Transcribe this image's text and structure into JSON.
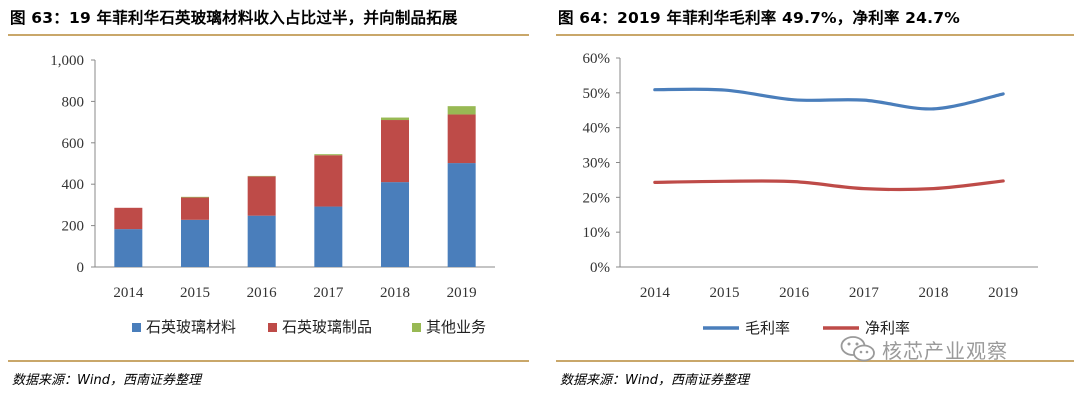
{
  "charts": [
    {
      "title": "图 63：19 年菲利华石英玻璃材料收入占比过半，并向制品拓展",
      "source": "数据来源：Wind，西南证券整理"
    },
    {
      "title": "图 64：2019 年菲利华毛利率 49.7%，净利率 24.7%",
      "source": "数据来源：Wind，西南证券整理"
    }
  ],
  "watermark": {
    "text": "核芯产业观察",
    "icon": "wechat-icon"
  },
  "chart_data": [
    {
      "type": "bar",
      "stacked": true,
      "categories": [
        "2014",
        "2015",
        "2016",
        "2017",
        "2018",
        "2019"
      ],
      "series": [
        {
          "name": "石英玻璃材料",
          "color": "#4a7ebb",
          "values": [
            183,
            228,
            248,
            292,
            410,
            502
          ]
        },
        {
          "name": "石英玻璃制品",
          "color": "#be4b48",
          "values": [
            103,
            108,
            190,
            248,
            300,
            235
          ]
        },
        {
          "name": "其他业务",
          "color": "#98b954",
          "values": [
            0,
            3,
            2,
            5,
            12,
            40
          ]
        }
      ],
      "ylim": [
        0,
        1000
      ],
      "yticks": [
        0,
        200,
        400,
        600,
        800,
        1000
      ],
      "ytick_labels": [
        "0",
        "200",
        "400",
        "600",
        "800",
        "1,000"
      ],
      "legend_position": "bottom",
      "grid": false
    },
    {
      "type": "line",
      "categories": [
        "2014",
        "2015",
        "2016",
        "2017",
        "2018",
        "2019"
      ],
      "series": [
        {
          "name": "毛利率",
          "color": "#4a7ebb",
          "values": [
            50.9,
            50.8,
            48.0,
            47.9,
            45.4,
            49.7
          ]
        },
        {
          "name": "净利率",
          "color": "#be4b48",
          "values": [
            24.3,
            24.6,
            24.5,
            22.5,
            22.5,
            24.7
          ]
        }
      ],
      "ylim": [
        0,
        60
      ],
      "yticks": [
        0,
        10,
        20,
        30,
        40,
        50,
        60
      ],
      "ytick_labels": [
        "0%",
        "10%",
        "20%",
        "30%",
        "40%",
        "50%",
        "60%"
      ],
      "legend_position": "bottom",
      "grid": false
    }
  ]
}
